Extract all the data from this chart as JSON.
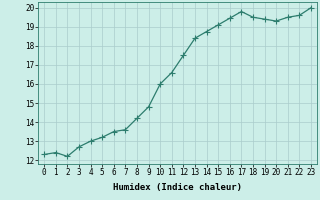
{
  "x": [
    0,
    1,
    2,
    3,
    4,
    5,
    6,
    7,
    8,
    9,
    10,
    11,
    12,
    13,
    14,
    15,
    16,
    17,
    18,
    19,
    20,
    21,
    22,
    23
  ],
  "y": [
    12.3,
    12.4,
    12.2,
    12.7,
    13.0,
    13.2,
    13.5,
    13.6,
    14.2,
    14.8,
    16.0,
    16.6,
    17.5,
    18.4,
    18.75,
    19.1,
    19.45,
    19.8,
    19.5,
    19.4,
    19.3,
    19.5,
    19.6,
    20.0
  ],
  "line_color": "#2d7d6e",
  "marker": "+",
  "marker_size": 4,
  "bg_color": "#cceee8",
  "grid_color": "#aacccc",
  "xlabel": "Humidex (Indice chaleur)",
  "xlim": [
    -0.5,
    23.5
  ],
  "ylim": [
    11.8,
    20.3
  ],
  "yticks": [
    12,
    13,
    14,
    15,
    16,
    17,
    18,
    19,
    20
  ],
  "xticks": [
    0,
    1,
    2,
    3,
    4,
    5,
    6,
    7,
    8,
    9,
    10,
    11,
    12,
    13,
    14,
    15,
    16,
    17,
    18,
    19,
    20,
    21,
    22,
    23
  ],
  "tick_fontsize": 5.5,
  "xlabel_fontsize": 6.5,
  "linewidth": 0.9,
  "marker_color": "#2d7d6e",
  "spine_color": "#2d7d6e"
}
